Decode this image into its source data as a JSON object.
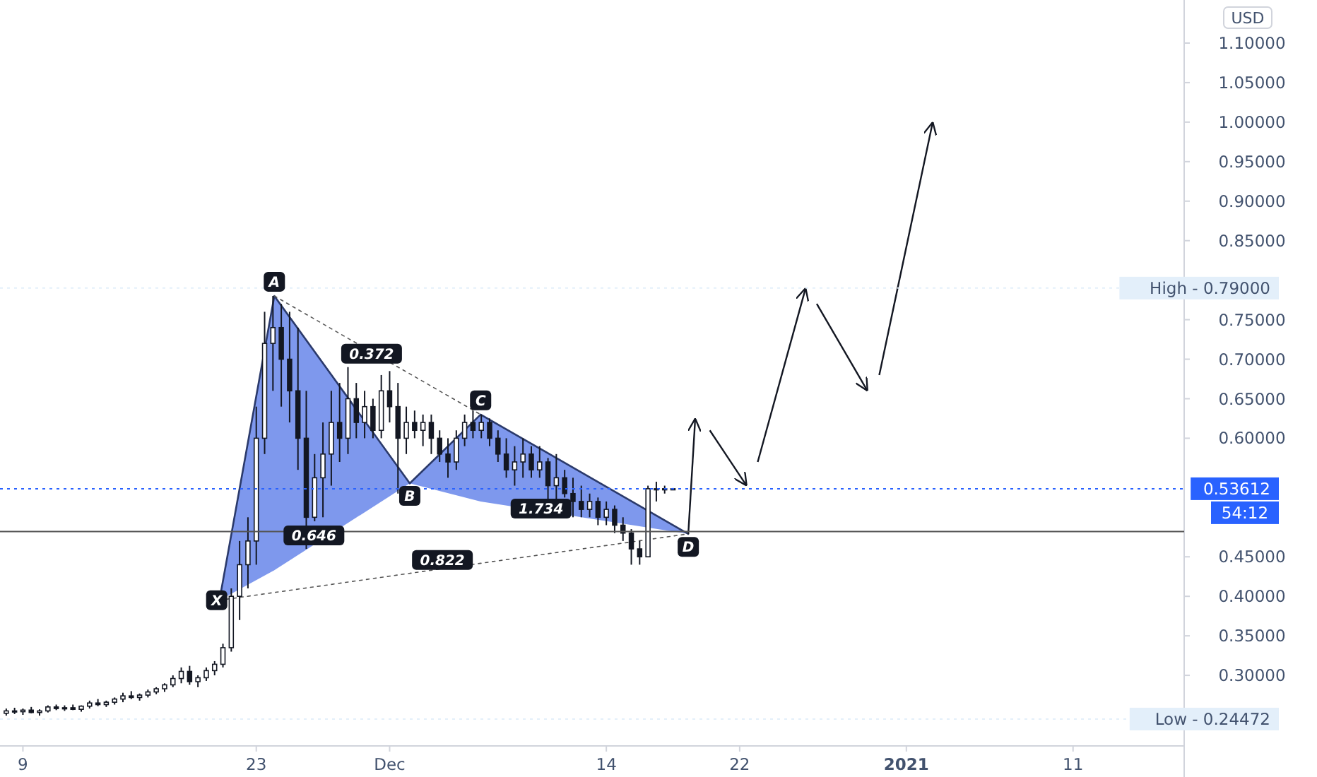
{
  "chart_data": {
    "type": "candlestick",
    "color": "#131722",
    "x": [
      "2020-11-08T00:00",
      "2020-11-08T12:00",
      "2020-11-09T00:00",
      "2020-11-09T12:00",
      "2020-11-10T00:00",
      "2020-11-10T12:00",
      "2020-11-11T00:00",
      "2020-11-11T12:00",
      "2020-11-12T00:00",
      "2020-11-12T12:00",
      "2020-11-13T00:00",
      "2020-11-13T12:00",
      "2020-11-14T00:00",
      "2020-11-14T12:00",
      "2020-11-15T00:00",
      "2020-11-15T12:00",
      "2020-11-16T00:00",
      "2020-11-16T12:00",
      "2020-11-17T00:00",
      "2020-11-17T12:00",
      "2020-11-18T00:00",
      "2020-11-18T12:00",
      "2020-11-19T00:00",
      "2020-11-19T12:00",
      "2020-11-20T00:00",
      "2020-11-20T12:00",
      "2020-11-21T00:00",
      "2020-11-21T12:00",
      "2020-11-22T00:00",
      "2020-11-22T12:00",
      "2020-11-23T00:00",
      "2020-11-23T12:00",
      "2020-11-24T00:00",
      "2020-11-24T12:00",
      "2020-11-25T00:00",
      "2020-11-25T12:00",
      "2020-11-26T00:00",
      "2020-11-26T12:00",
      "2020-11-27T00:00",
      "2020-11-27T12:00",
      "2020-11-28T00:00",
      "2020-11-28T12:00",
      "2020-11-29T00:00",
      "2020-11-29T12:00",
      "2020-11-30T00:00",
      "2020-11-30T12:00",
      "2020-12-01T00:00",
      "2020-12-01T12:00",
      "2020-12-02T00:00",
      "2020-12-02T12:00",
      "2020-12-03T00:00",
      "2020-12-03T12:00",
      "2020-12-04T00:00",
      "2020-12-04T12:00",
      "2020-12-05T00:00",
      "2020-12-05T12:00",
      "2020-12-06T00:00",
      "2020-12-06T12:00",
      "2020-12-07T00:00",
      "2020-12-07T12:00",
      "2020-12-08T00:00",
      "2020-12-08T12:00",
      "2020-12-09T00:00",
      "2020-12-09T12:00",
      "2020-12-10T00:00",
      "2020-12-10T12:00",
      "2020-12-11T00:00",
      "2020-12-11T12:00",
      "2020-12-12T00:00",
      "2020-12-12T12:00",
      "2020-12-13T00:00",
      "2020-12-13T12:00",
      "2020-12-14T00:00",
      "2020-12-14T12:00",
      "2020-12-15T00:00",
      "2020-12-15T12:00",
      "2020-12-16T00:00",
      "2020-12-16T12:00",
      "2020-12-17T00:00",
      "2020-12-17T12:00",
      "2020-12-18T00:00"
    ],
    "ohlc": [
      [
        0.252,
        0.258,
        0.249,
        0.255
      ],
      [
        0.255,
        0.259,
        0.251,
        0.254
      ],
      [
        0.254,
        0.258,
        0.25,
        0.256
      ],
      [
        0.256,
        0.26,
        0.252,
        0.253
      ],
      [
        0.253,
        0.257,
        0.249,
        0.255
      ],
      [
        0.255,
        0.262,
        0.253,
        0.26
      ],
      [
        0.26,
        0.263,
        0.256,
        0.258
      ],
      [
        0.258,
        0.262,
        0.255,
        0.259
      ],
      [
        0.259,
        0.263,
        0.256,
        0.257
      ],
      [
        0.257,
        0.262,
        0.254,
        0.261
      ],
      [
        0.261,
        0.268,
        0.258,
        0.265
      ],
      [
        0.265,
        0.27,
        0.261,
        0.263
      ],
      [
        0.263,
        0.268,
        0.26,
        0.266
      ],
      [
        0.266,
        0.272,
        0.263,
        0.27
      ],
      [
        0.27,
        0.278,
        0.266,
        0.274
      ],
      [
        0.274,
        0.28,
        0.27,
        0.272
      ],
      [
        0.272,
        0.277,
        0.268,
        0.275
      ],
      [
        0.275,
        0.282,
        0.272,
        0.279
      ],
      [
        0.279,
        0.285,
        0.276,
        0.283
      ],
      [
        0.283,
        0.29,
        0.279,
        0.288
      ],
      [
        0.288,
        0.3,
        0.285,
        0.296
      ],
      [
        0.296,
        0.31,
        0.29,
        0.305
      ],
      [
        0.305,
        0.312,
        0.288,
        0.292
      ],
      [
        0.292,
        0.3,
        0.285,
        0.297
      ],
      [
        0.297,
        0.31,
        0.293,
        0.306
      ],
      [
        0.306,
        0.318,
        0.3,
        0.314
      ],
      [
        0.314,
        0.34,
        0.31,
        0.335
      ],
      [
        0.335,
        0.41,
        0.33,
        0.4
      ],
      [
        0.4,
        0.47,
        0.37,
        0.44
      ],
      [
        0.44,
        0.5,
        0.41,
        0.47
      ],
      [
        0.47,
        0.64,
        0.44,
        0.6
      ],
      [
        0.6,
        0.76,
        0.58,
        0.72
      ],
      [
        0.72,
        0.78,
        0.66,
        0.74
      ],
      [
        0.74,
        0.77,
        0.64,
        0.7
      ],
      [
        0.7,
        0.76,
        0.62,
        0.66
      ],
      [
        0.66,
        0.74,
        0.56,
        0.6
      ],
      [
        0.6,
        0.66,
        0.46,
        0.5
      ],
      [
        0.5,
        0.58,
        0.495,
        0.55
      ],
      [
        0.55,
        0.62,
        0.5,
        0.58
      ],
      [
        0.58,
        0.66,
        0.54,
        0.62
      ],
      [
        0.62,
        0.67,
        0.57,
        0.6
      ],
      [
        0.6,
        0.69,
        0.58,
        0.65
      ],
      [
        0.65,
        0.67,
        0.6,
        0.62
      ],
      [
        0.62,
        0.66,
        0.6,
        0.64
      ],
      [
        0.64,
        0.65,
        0.6,
        0.61
      ],
      [
        0.61,
        0.68,
        0.6,
        0.66
      ],
      [
        0.66,
        0.685,
        0.62,
        0.64
      ],
      [
        0.64,
        0.67,
        0.53,
        0.6
      ],
      [
        0.6,
        0.64,
        0.58,
        0.62
      ],
      [
        0.62,
        0.635,
        0.6,
        0.61
      ],
      [
        0.61,
        0.63,
        0.59,
        0.62
      ],
      [
        0.62,
        0.63,
        0.58,
        0.6
      ],
      [
        0.6,
        0.61,
        0.57,
        0.58
      ],
      [
        0.58,
        0.6,
        0.55,
        0.57
      ],
      [
        0.57,
        0.61,
        0.56,
        0.6
      ],
      [
        0.6,
        0.63,
        0.59,
        0.62
      ],
      [
        0.62,
        0.635,
        0.6,
        0.61
      ],
      [
        0.61,
        0.63,
        0.6,
        0.62
      ],
      [
        0.62,
        0.625,
        0.59,
        0.6
      ],
      [
        0.6,
        0.61,
        0.57,
        0.58
      ],
      [
        0.58,
        0.6,
        0.55,
        0.56
      ],
      [
        0.56,
        0.59,
        0.54,
        0.57
      ],
      [
        0.57,
        0.6,
        0.55,
        0.58
      ],
      [
        0.58,
        0.59,
        0.55,
        0.56
      ],
      [
        0.56,
        0.59,
        0.55,
        0.57
      ],
      [
        0.57,
        0.575,
        0.52,
        0.54
      ],
      [
        0.54,
        0.58,
        0.52,
        0.55
      ],
      [
        0.55,
        0.56,
        0.525,
        0.53
      ],
      [
        0.53,
        0.55,
        0.5,
        0.52
      ],
      [
        0.52,
        0.54,
        0.5,
        0.51
      ],
      [
        0.51,
        0.53,
        0.5,
        0.52
      ],
      [
        0.52,
        0.525,
        0.49,
        0.5
      ],
      [
        0.5,
        0.52,
        0.49,
        0.51
      ],
      [
        0.51,
        0.515,
        0.48,
        0.49
      ],
      [
        0.49,
        0.5,
        0.47,
        0.48
      ],
      [
        0.48,
        0.485,
        0.44,
        0.46
      ],
      [
        0.46,
        0.47,
        0.44,
        0.45
      ],
      [
        0.45,
        0.54,
        0.45,
        0.53612
      ],
      [
        0.53612,
        0.545,
        0.52,
        0.53612
      ],
      [
        0.53612,
        0.54,
        0.53,
        0.53612
      ],
      [
        0.53612,
        0.537,
        0.535,
        0.53612
      ]
    ],
    "series": [
      {
        "type": "line",
        "color": "#2b3a6b",
        "x": [
          "2020-11-20T19:00",
          "2020-11-24T02:00",
          "2020-12-02T05:00"
        ],
        "values": [
          0.395,
          0.78,
          0.543
        ],
        "lower": [
          0.395,
          0.433,
          0.543
        ],
        "upper": [
          0.395,
          0.78,
          0.543
        ]
      },
      {
        "type": "line",
        "color": "#2b3a6b",
        "x": [
          "2020-12-02T05:00",
          "2020-12-06T11:00",
          "2020-12-18T22:00"
        ],
        "values": [
          0.543,
          0.63,
          0.479
        ],
        "lower": [
          0.543,
          0.52,
          0.479
        ],
        "upper": [
          0.543,
          0.63,
          0.479
        ]
      },
      {
        "type": "line",
        "color": "#555555",
        "line_style": "dotted",
        "x": [
          "2020-11-24T02:00",
          "2020-12-06T11:00"
        ],
        "values": [
          0.78,
          0.63
        ]
      },
      {
        "type": "line",
        "color": "#555555",
        "line_style": "dotted",
        "x": [
          "2020-11-20T19:00",
          "2020-12-18T22:00"
        ],
        "values": [
          0.395,
          0.479
        ]
      },
      {
        "type": "line",
        "color": "#131722",
        "x": [
          "2020-12-18T22:00",
          "2020-12-19T08:00"
        ],
        "values": [
          0.479,
          0.625
        ]
      },
      {
        "type": "line",
        "color": "#131722",
        "x": [
          "2020-12-20T05:00",
          "2020-12-22T10:00"
        ],
        "values": [
          0.61,
          0.54
        ]
      },
      {
        "type": "line",
        "color": "#131722",
        "x": [
          "2020-12-23T02:00",
          "2020-12-25T23:00"
        ],
        "values": [
          0.57,
          0.79
        ]
      },
      {
        "type": "line",
        "color": "#131722",
        "x": [
          "2020-12-26T15:00",
          "2020-12-29T16:00"
        ],
        "values": [
          0.77,
          0.66
        ]
      },
      {
        "type": "line",
        "color": "#131722",
        "x": [
          "2020-12-30T09:00",
          "2021-01-02T14:00"
        ],
        "values": [
          0.68,
          1.0
        ]
      }
    ],
    "xlim": [
      "2020-11-07T15:00",
      "2021-01-17T16:00"
    ],
    "xticks": [
      {
        "value": "2020-11-09",
        "label": "9"
      },
      {
        "value": "2020-11-23",
        "label": "23"
      },
      {
        "value": "2020-12-01",
        "label": "Dec"
      },
      {
        "value": "2020-12-14",
        "label": "14"
      },
      {
        "value": "2020-12-22",
        "label": "22"
      },
      {
        "value": "2021-01-01",
        "label": "2021"
      },
      {
        "value": "2021-01-11",
        "label": "11"
      }
    ],
    "ylim": [
      0.2107,
      1.1545
    ],
    "yticks": [
      {
        "value": 0.3,
        "label": "0.30000"
      },
      {
        "value": 0.35,
        "label": "0.35000"
      },
      {
        "value": 0.4,
        "label": "0.40000"
      },
      {
        "value": 0.45,
        "label": "0.45000"
      },
      {
        "value": 0.6,
        "label": "0.60000"
      },
      {
        "value": 0.65,
        "label": "0.65000"
      },
      {
        "value": 0.7,
        "label": "0.70000"
      },
      {
        "value": 0.75,
        "label": "0.75000"
      },
      {
        "value": 0.85,
        "label": "0.85000"
      },
      {
        "value": 0.9,
        "label": "0.90000"
      },
      {
        "value": 0.95,
        "label": "0.95000"
      },
      {
        "value": 1.0,
        "label": "1.00000"
      },
      {
        "value": 1.05,
        "label": "1.05000"
      },
      {
        "value": 1.1,
        "label": "1.10000"
      }
    ],
    "ref_lines": [
      {
        "axis": "y",
        "value": 0.482,
        "label": null,
        "color": "#555555",
        "line_style": "solid"
      },
      {
        "axis": "y",
        "value": 0.79,
        "label": "High - 0.79000",
        "color": "#e3effa",
        "line_style": "dotted"
      },
      {
        "axis": "y",
        "value": 0.24472,
        "label": "Low - 0.24472",
        "color": "#e3effa",
        "line_style": "dotted"
      },
      {
        "axis": "y",
        "value": 0.53612,
        "label": "0.53612",
        "color": "#2962ff",
        "line_style": "dotted"
      }
    ],
    "annotations": [
      "USD",
      "54:12",
      {
        "text": "X",
        "x": "2020-11-20T15:00",
        "y": 0.395
      },
      {
        "text": "A",
        "x": "2020-11-24T02:00",
        "y": 0.798
      },
      {
        "text": "B",
        "x": "2020-12-02T05:00",
        "y": 0.527
      },
      {
        "text": "C",
        "x": "2020-12-06T11:00",
        "y": 0.648
      },
      {
        "text": "D",
        "x": "2020-12-18T22:00",
        "y": 0.4625
      },
      {
        "text": "0.372",
        "x": "2020-11-29T22:00",
        "y": 0.707
      },
      {
        "text": "0.646",
        "x": "2020-11-26T11:00",
        "y": 0.477
      },
      {
        "text": "1.734",
        "x": "2020-12-10T02:00",
        "y": 0.511
      },
      {
        "text": "0.822",
        "x": "2020-12-04T04:00",
        "y": 0.446
      }
    ],
    "grid": false
  }
}
